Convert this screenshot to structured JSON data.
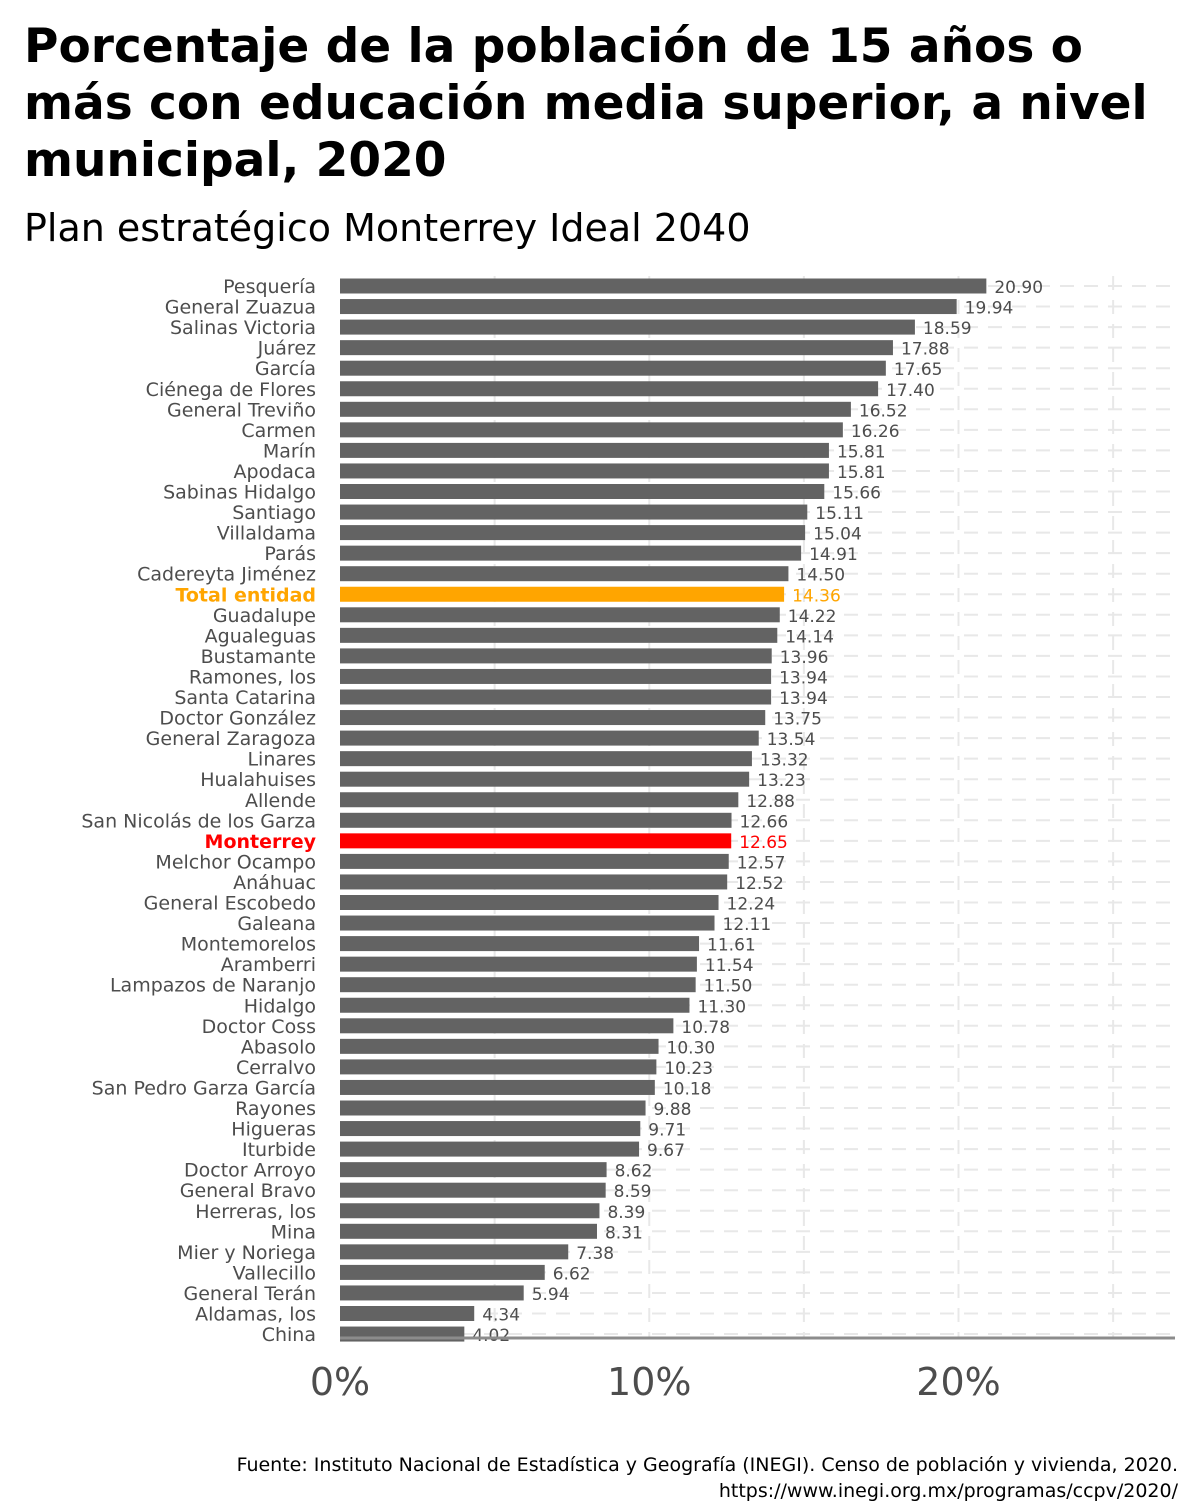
{
  "chart_data": {
    "type": "bar",
    "orientation": "horizontal",
    "title": "Porcentaje de la población de 15 años o más con educación media superior, a nivel municipal, 2020",
    "subtitle": "Plan estratégico Monterrey Ideal 2040",
    "caption": "Fuente: Instituto Nacional de Estadística y Geografía (INEGI). Censo de población y vivienda, 2020. https://www.inegi.org.mx/programas/ccpv/2020/",
    "xlabel": "",
    "ylabel": "",
    "xlim": [
      0,
      27
    ],
    "x_ticks": [
      {
        "value": 0,
        "label": "0%"
      },
      {
        "value": 10,
        "label": "10%"
      },
      {
        "value": 20,
        "label": "20%"
      }
    ],
    "grid": "dashed",
    "colors": {
      "default": "#636363",
      "highlight_state": "#FFA500",
      "highlight_city": "#FF0000",
      "label": "#4D4D4D",
      "grid": "#E8E8E8",
      "axis": "#8C8C8C"
    },
    "categories": [
      "Pesquería",
      "General Zuazua",
      "Salinas Victoria",
      "Juárez",
      "García",
      "Ciénega de Flores",
      "General Treviño",
      "Carmen",
      "Marín",
      "Apodaca",
      "Sabinas Hidalgo",
      "Santiago",
      "Villaldama",
      "Parás",
      "Cadereyta Jiménez",
      "Total entidad",
      "Guadalupe",
      "Agualeguas",
      "Bustamante",
      "Ramones, los",
      "Santa Catarina",
      "Doctor González",
      "General Zaragoza",
      "Linares",
      "Hualahuises",
      "Allende",
      "San Nicolás de los Garza",
      "Monterrey",
      "Melchor Ocampo",
      "Anáhuac",
      "General Escobedo",
      "Galeana",
      "Montemorelos",
      "Aramberri",
      "Lampazos de Naranjo",
      "Hidalgo",
      "Doctor Coss",
      "Abasolo",
      "Cerralvo",
      "San Pedro Garza García",
      "Rayones",
      "Higueras",
      "Iturbide",
      "Doctor Arroyo",
      "General Bravo",
      "Herreras, los",
      "Mina",
      "Mier y Noriega",
      "Vallecillo",
      "General Terán",
      "Aldamas, los",
      "China"
    ],
    "values": [
      20.9,
      19.94,
      18.59,
      17.88,
      17.65,
      17.4,
      16.52,
      16.26,
      15.81,
      15.81,
      15.66,
      15.11,
      15.04,
      14.91,
      14.5,
      14.36,
      14.22,
      14.14,
      13.96,
      13.94,
      13.94,
      13.75,
      13.54,
      13.32,
      13.23,
      12.88,
      12.66,
      12.65,
      12.57,
      12.52,
      12.24,
      12.11,
      11.61,
      11.54,
      11.5,
      11.3,
      10.78,
      10.3,
      10.23,
      10.18,
      9.88,
      9.71,
      9.67,
      8.62,
      8.59,
      8.39,
      8.31,
      7.38,
      6.62,
      5.94,
      4.34,
      4.02
    ],
    "value_labels": [
      "20.90",
      "19.94",
      "18.59",
      "17.88",
      "17.65",
      "17.40",
      "16.52",
      "16.26",
      "15.81",
      "15.81",
      "15.66",
      "15.11",
      "15.04",
      "14.91",
      "14.50",
      "14.36",
      "14.22",
      "14.14",
      "13.96",
      "13.94",
      "13.94",
      "13.75",
      "13.54",
      "13.32",
      "13.23",
      "12.88",
      "12.66",
      "12.65",
      "12.57",
      "12.52",
      "12.24",
      "12.11",
      "11.61",
      "11.54",
      "11.50",
      "11.30",
      "10.78",
      "10.30",
      "10.23",
      "10.18",
      "9.88",
      "9.71",
      "9.67",
      "8.62",
      "8.59",
      "8.39",
      "8.31",
      "7.38",
      "6.62",
      "5.94",
      "4.34",
      "4.02"
    ],
    "highlights": {
      "Total entidad": "highlight_state",
      "Monterrey": "highlight_city"
    }
  }
}
